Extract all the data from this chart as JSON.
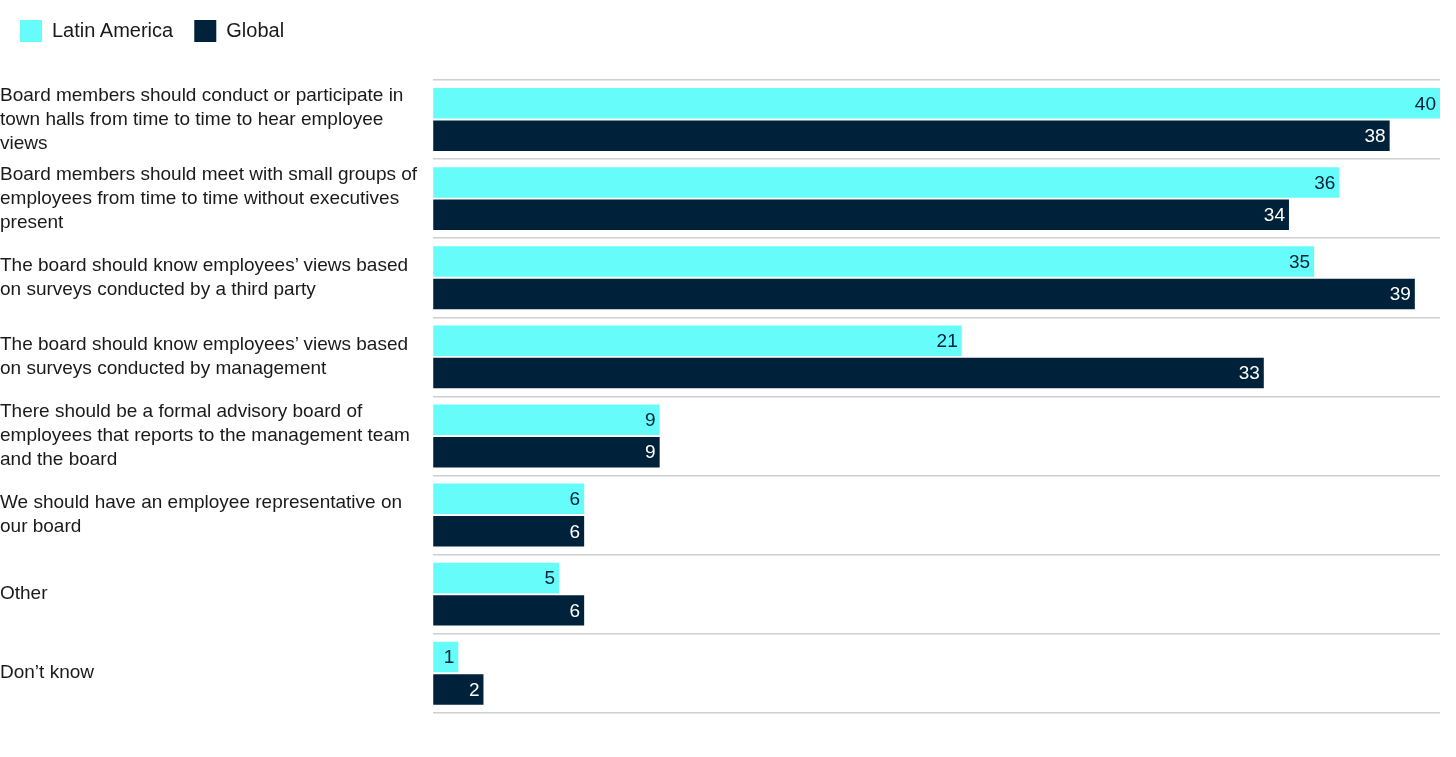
{
  "chart_data": {
    "type": "bar",
    "orientation": "horizontal",
    "categories": [
      "Board members should conduct or participate in town halls from time to time to hear employee views",
      "Board members should meet with small groups of employees from time to time without executives present",
      "The board should know employees’ views based on surveys conducted by a third party",
      "The board should know employees’ views based on surveys conducted by management",
      "There should be a formal advisory board of employees that reports to the management team and the board",
      "We should have an employee representative on our board",
      "Other",
      "Don’t know"
    ],
    "series": [
      {
        "name": "Latin America",
        "color": "#66fcf9",
        "values": [
          40,
          36,
          35,
          21,
          9,
          6,
          5,
          1
        ]
      },
      {
        "name": "Global",
        "color": "#00213a",
        "values": [
          38,
          34,
          39,
          33,
          9,
          6,
          6,
          2
        ]
      }
    ],
    "data_labels": true,
    "legend": "top left",
    "grid": "y",
    "tick_labels": "y"
  }
}
